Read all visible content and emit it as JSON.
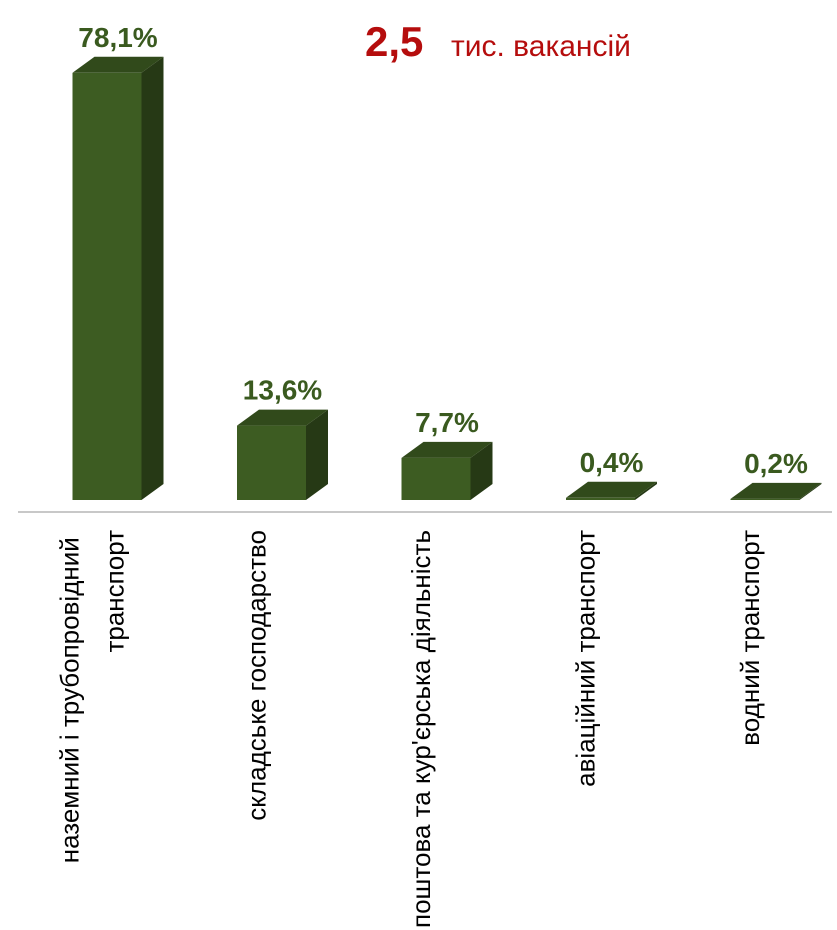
{
  "chart_data": {
    "type": "bar3d",
    "annotation_value": "2,5",
    "annotation_text": "тис. вакансій",
    "categories": [
      "наземний і трубопровідний транспорт",
      "складське господарство",
      "поштова та кур'єрська діяльність",
      "авіаційний транспорт",
      "водний транспорт"
    ],
    "values": [
      78.1,
      13.6,
      7.7,
      0.4,
      0.2
    ],
    "value_labels": [
      "78,1%",
      "13,6%",
      "7,7%",
      "0,4%",
      "0,2%"
    ],
    "color": "#3d5c22"
  }
}
